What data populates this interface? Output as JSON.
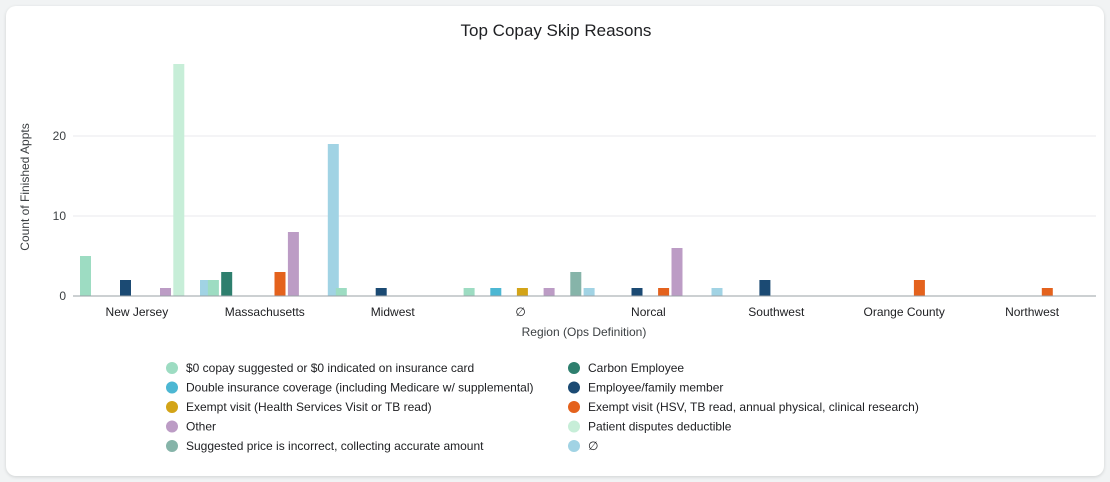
{
  "chart_data": {
    "type": "bar",
    "title": "Top Copay Skip Reasons",
    "xlabel": "Region (Ops Definition)",
    "ylabel": "Count of Finished Appts",
    "ylim": [
      0,
      30
    ],
    "yticks": [
      0,
      10,
      20
    ],
    "grid": true,
    "legend_position": "bottom",
    "categories": [
      "New Jersey",
      "Massachusetts",
      "Midwest",
      "∅",
      "Norcal",
      "Southwest",
      "Orange County",
      "Northwest"
    ],
    "series": [
      {
        "name": "$0 copay suggested or $0 indicated on insurance card",
        "color": "#9ddcc2",
        "values": [
          5,
          2,
          1,
          1,
          0,
          0,
          0,
          0
        ]
      },
      {
        "name": "Carbon Employee",
        "color": "#2e7f6e",
        "values": [
          0,
          3,
          0,
          0,
          0,
          0,
          0,
          0
        ]
      },
      {
        "name": "Double insurance coverage (including Medicare w/ supplemental)",
        "color": "#4cb7d3",
        "values": [
          0,
          0,
          0,
          1,
          0,
          0,
          0,
          0
        ]
      },
      {
        "name": "Employee/family member",
        "color": "#1b4a73",
        "values": [
          2,
          0,
          1,
          0,
          1,
          2,
          0,
          0
        ]
      },
      {
        "name": "Exempt visit (Health Services Visit or TB read)",
        "color": "#d3a418",
        "values": [
          0,
          0,
          0,
          1,
          0,
          0,
          0,
          0
        ]
      },
      {
        "name": "Exempt visit (HSV, TB read, annual physical, clinical research)",
        "color": "#e4621d",
        "values": [
          0,
          3,
          0,
          0,
          1,
          0,
          2,
          1
        ]
      },
      {
        "name": "Other",
        "color": "#bc9cc5",
        "values": [
          1,
          8,
          0,
          1,
          6,
          0,
          0,
          0
        ]
      },
      {
        "name": "Patient disputes deductible",
        "color": "#c7eed8",
        "values": [
          29,
          0,
          0,
          0,
          0,
          0,
          0,
          0
        ]
      },
      {
        "name": "Suggested price is incorrect, collecting accurate amount",
        "color": "#86b4a9",
        "values": [
          0,
          0,
          0,
          3,
          0,
          0,
          0,
          0
        ]
      },
      {
        "name": "∅",
        "color": "#a1d3e4",
        "values": [
          2,
          19,
          0,
          1,
          1,
          0,
          0,
          0
        ]
      }
    ]
  }
}
